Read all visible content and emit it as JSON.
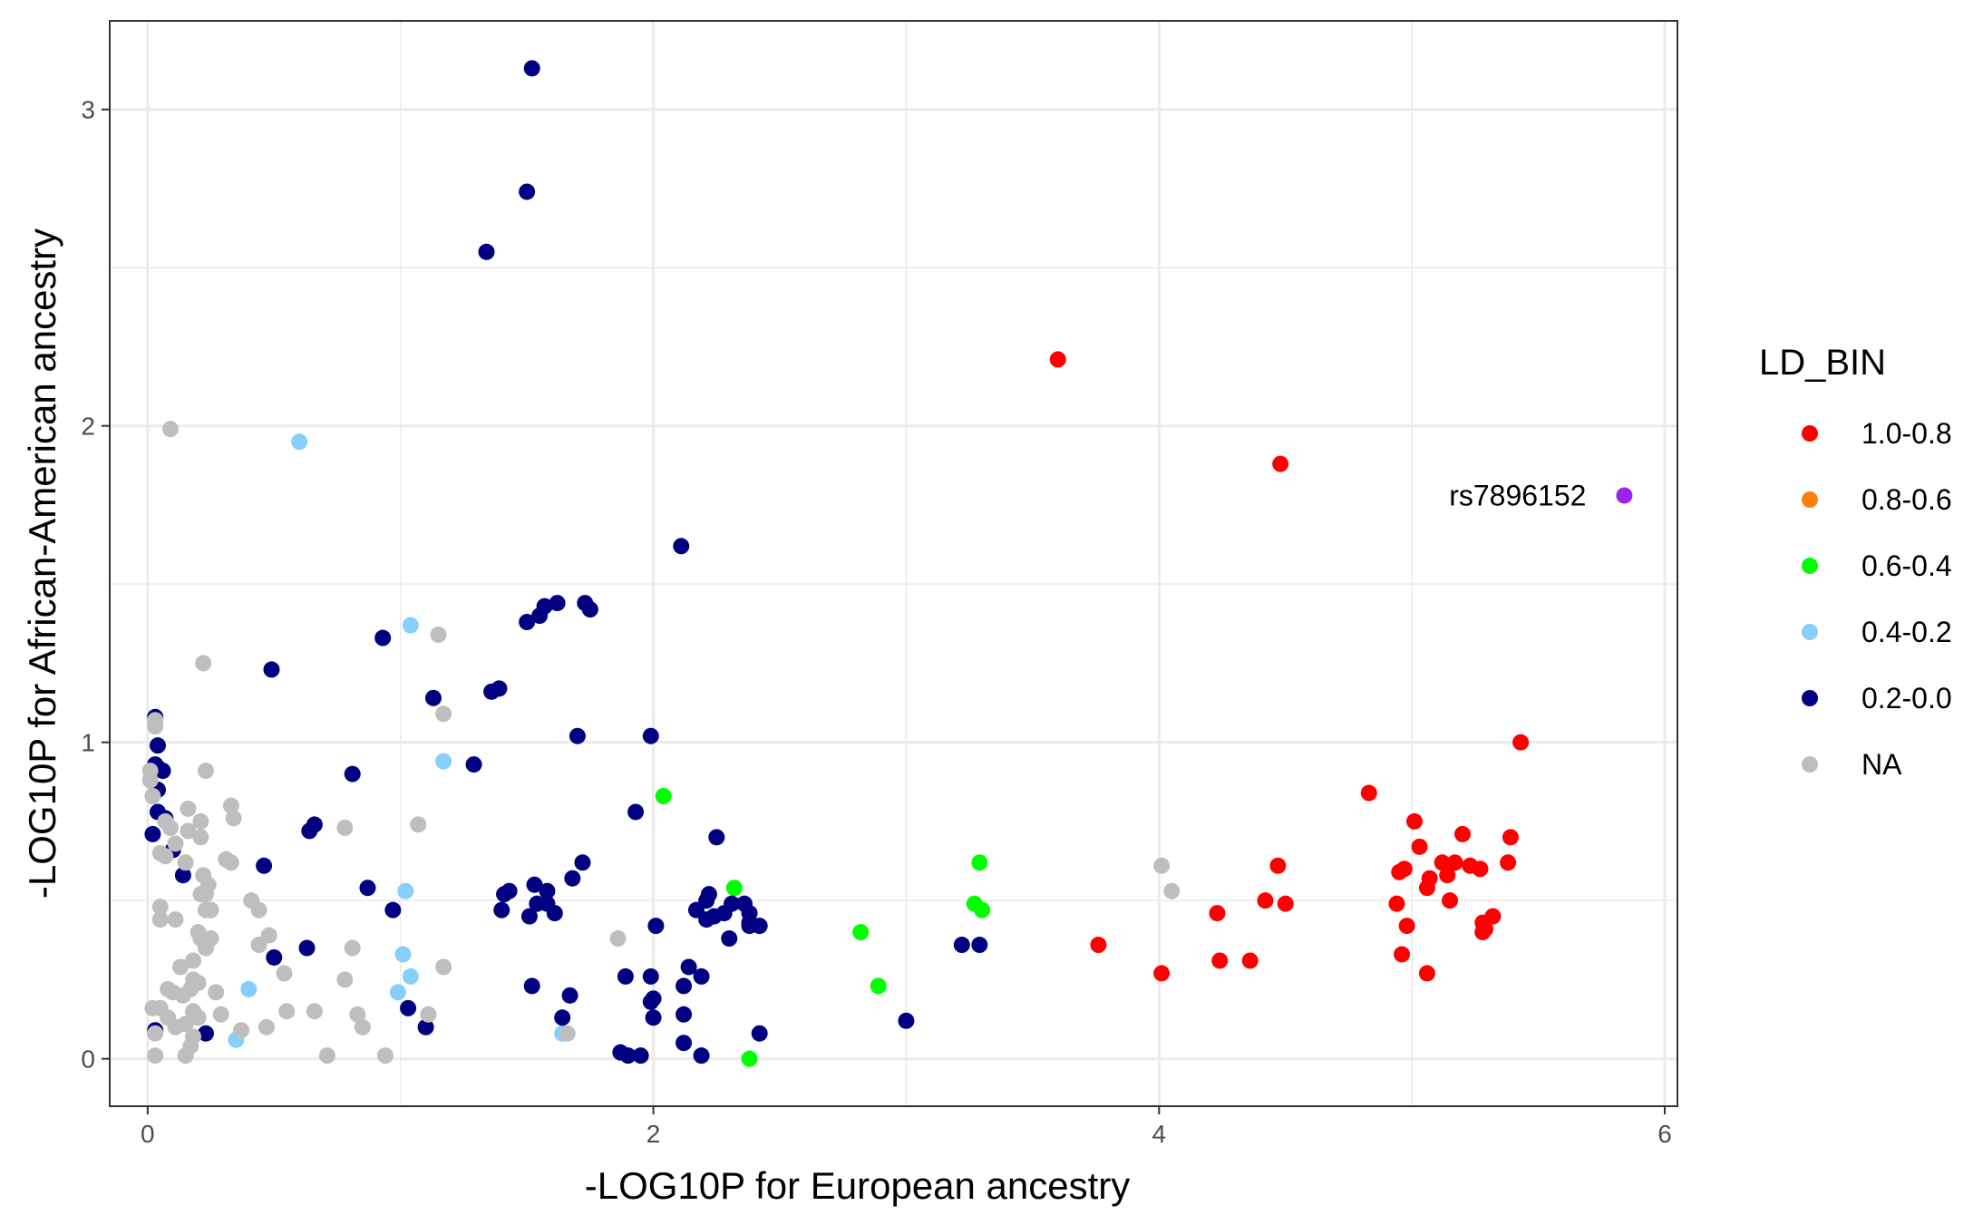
{
  "chart_data": {
    "type": "scatter",
    "xlabel": "-LOG10P for European ancestry",
    "ylabel": "-LOG10P for African-American ancestry",
    "xlim": [
      -0.15,
      6.05
    ],
    "ylim": [
      -0.15,
      3.28
    ],
    "xticks": [
      0,
      2,
      4,
      6
    ],
    "yticks": [
      0,
      1,
      2,
      3
    ],
    "grid": true,
    "legend_placement": "right",
    "legend": {
      "title": "LD_BIN",
      "entries": [
        {
          "label": "1.0-0.8",
          "color": "#ff0000"
        },
        {
          "label": "0.8-0.6",
          "color": "#ff7f0e"
        },
        {
          "label": "0.6-0.4",
          "color": "#00ff00"
        },
        {
          "label": "0.4-0.2",
          "color": "#87cefa"
        },
        {
          "label": "0.2-0.0",
          "color": "#000080"
        },
        {
          "label": "NA",
          "color": "#bebebe"
        }
      ]
    },
    "annotations": [
      {
        "text": "rs7896152",
        "x": 5.84,
        "y": 1.78
      }
    ],
    "series": [
      {
        "name": "1.0-0.8",
        "color": "#ff0000",
        "points": [
          [
            3.6,
            2.21
          ],
          [
            4.48,
            1.88
          ],
          [
            5.43,
            1.0
          ],
          [
            4.83,
            0.84
          ],
          [
            5.01,
            0.75
          ],
          [
            5.2,
            0.71
          ],
          [
            5.39,
            0.7
          ],
          [
            5.03,
            0.67
          ],
          [
            5.12,
            0.62
          ],
          [
            5.17,
            0.62
          ],
          [
            5.23,
            0.61
          ],
          [
            5.27,
            0.6
          ],
          [
            5.38,
            0.62
          ],
          [
            4.97,
            0.6
          ],
          [
            4.95,
            0.59
          ],
          [
            5.14,
            0.58
          ],
          [
            5.07,
            0.57
          ],
          [
            5.06,
            0.54
          ],
          [
            5.15,
            0.5
          ],
          [
            4.94,
            0.49
          ],
          [
            5.32,
            0.45
          ],
          [
            5.28,
            0.43
          ],
          [
            5.29,
            0.41
          ],
          [
            5.28,
            0.4
          ],
          [
            4.98,
            0.42
          ],
          [
            4.96,
            0.33
          ],
          [
            5.06,
            0.27
          ],
          [
            4.47,
            0.61
          ],
          [
            4.42,
            0.5
          ],
          [
            4.5,
            0.49
          ],
          [
            4.23,
            0.46
          ],
          [
            3.76,
            0.36
          ],
          [
            4.01,
            0.27
          ],
          [
            4.24,
            0.31
          ],
          [
            4.36,
            0.31
          ]
        ]
      },
      {
        "name": "0.6-0.4",
        "color": "#00ff00",
        "points": [
          [
            2.04,
            0.83
          ],
          [
            2.32,
            0.54
          ],
          [
            3.29,
            0.62
          ],
          [
            3.27,
            0.49
          ],
          [
            3.3,
            0.47
          ],
          [
            2.82,
            0.4
          ],
          [
            2.89,
            0.23
          ],
          [
            2.38,
            0.0
          ]
        ]
      },
      {
        "name": "0.4-0.2",
        "color": "#87cefa",
        "points": [
          [
            0.6,
            1.95
          ],
          [
            1.04,
            1.37
          ],
          [
            1.17,
            0.94
          ],
          [
            1.02,
            0.53
          ],
          [
            1.01,
            0.33
          ],
          [
            1.04,
            0.26
          ],
          [
            0.99,
            0.21
          ],
          [
            0.4,
            0.22
          ],
          [
            0.35,
            0.06
          ],
          [
            1.64,
            0.08
          ]
        ]
      },
      {
        "name": "0.2-0.0",
        "color": "#000080",
        "points": [
          [
            1.52,
            3.13
          ],
          [
            1.5,
            2.74
          ],
          [
            1.34,
            2.55
          ],
          [
            2.11,
            1.62
          ],
          [
            1.5,
            1.38
          ],
          [
            1.55,
            1.4
          ],
          [
            1.57,
            1.43
          ],
          [
            1.62,
            1.44
          ],
          [
            1.73,
            1.44
          ],
          [
            1.75,
            1.42
          ],
          [
            0.93,
            1.33
          ],
          [
            0.49,
            1.23
          ],
          [
            1.39,
            1.17
          ],
          [
            1.36,
            1.16
          ],
          [
            1.13,
            1.14
          ],
          [
            1.7,
            1.02
          ],
          [
            1.99,
            1.02
          ],
          [
            0.03,
            1.08
          ],
          [
            0.04,
            0.99
          ],
          [
            0.03,
            0.93
          ],
          [
            0.04,
            0.92
          ],
          [
            0.06,
            0.91
          ],
          [
            0.04,
            0.85
          ],
          [
            0.81,
            0.9
          ],
          [
            1.29,
            0.93
          ],
          [
            0.04,
            0.78
          ],
          [
            0.07,
            0.76
          ],
          [
            0.02,
            0.71
          ],
          [
            0.64,
            0.72
          ],
          [
            0.66,
            0.74
          ],
          [
            1.93,
            0.78
          ],
          [
            2.25,
            0.7
          ],
          [
            0.46,
            0.61
          ],
          [
            0.14,
            0.58
          ],
          [
            1.72,
            0.62
          ],
          [
            1.68,
            0.57
          ],
          [
            0.87,
            0.54
          ],
          [
            1.53,
            0.55
          ],
          [
            1.58,
            0.53
          ],
          [
            1.43,
            0.53
          ],
          [
            1.41,
            0.52
          ],
          [
            1.54,
            0.49
          ],
          [
            1.58,
            0.49
          ],
          [
            1.4,
            0.47
          ],
          [
            0.97,
            0.47
          ],
          [
            1.51,
            0.45
          ],
          [
            1.61,
            0.46
          ],
          [
            2.17,
            0.47
          ],
          [
            2.21,
            0.5
          ],
          [
            2.22,
            0.52
          ],
          [
            2.28,
            0.46
          ],
          [
            2.24,
            0.45
          ],
          [
            2.21,
            0.44
          ],
          [
            2.36,
            0.49
          ],
          [
            2.31,
            0.49
          ],
          [
            2.38,
            0.46
          ],
          [
            2.38,
            0.43
          ],
          [
            2.42,
            0.42
          ],
          [
            2.38,
            0.42
          ],
          [
            2.3,
            0.38
          ],
          [
            2.01,
            0.42
          ],
          [
            0.63,
            0.35
          ],
          [
            0.5,
            0.32
          ],
          [
            3.22,
            0.36
          ],
          [
            3.29,
            0.36
          ],
          [
            1.52,
            0.23
          ],
          [
            1.67,
            0.2
          ],
          [
            1.89,
            0.26
          ],
          [
            1.99,
            0.26
          ],
          [
            2.14,
            0.29
          ],
          [
            2.19,
            0.26
          ],
          [
            2.12,
            0.23
          ],
          [
            2.0,
            0.19
          ],
          [
            1.99,
            0.18
          ],
          [
            2.0,
            0.13
          ],
          [
            1.64,
            0.13
          ],
          [
            1.03,
            0.16
          ],
          [
            1.1,
            0.1
          ],
          [
            2.12,
            0.14
          ],
          [
            2.42,
            0.08
          ],
          [
            3.0,
            0.12
          ],
          [
            2.12,
            0.05
          ],
          [
            2.19,
            0.01
          ],
          [
            1.87,
            0.02
          ],
          [
            1.9,
            0.01
          ],
          [
            1.95,
            0.01
          ],
          [
            0.23,
            0.08
          ],
          [
            0.03,
            0.09
          ],
          [
            0.1,
            0.66
          ]
        ]
      },
      {
        "name": "NA",
        "color": "#bebebe",
        "points": [
          [
            0.09,
            1.99
          ],
          [
            1.15,
            1.34
          ],
          [
            0.22,
            1.25
          ],
          [
            1.17,
            1.09
          ],
          [
            0.03,
            1.07
          ],
          [
            0.03,
            1.05
          ],
          [
            0.01,
            0.91
          ],
          [
            0.23,
            0.91
          ],
          [
            0.01,
            0.88
          ],
          [
            0.02,
            0.83
          ],
          [
            0.16,
            0.79
          ],
          [
            0.33,
            0.8
          ],
          [
            0.34,
            0.76
          ],
          [
            0.21,
            0.75
          ],
          [
            0.07,
            0.75
          ],
          [
            0.09,
            0.73
          ],
          [
            0.16,
            0.72
          ],
          [
            0.21,
            0.7
          ],
          [
            0.11,
            0.68
          ],
          [
            0.78,
            0.73
          ],
          [
            1.07,
            0.74
          ],
          [
            0.05,
            0.65
          ],
          [
            0.07,
            0.64
          ],
          [
            0.15,
            0.62
          ],
          [
            0.31,
            0.63
          ],
          [
            0.33,
            0.62
          ],
          [
            0.22,
            0.58
          ],
          [
            0.24,
            0.55
          ],
          [
            0.21,
            0.52
          ],
          [
            0.23,
            0.52
          ],
          [
            0.41,
            0.5
          ],
          [
            0.44,
            0.47
          ],
          [
            0.23,
            0.47
          ],
          [
            0.25,
            0.47
          ],
          [
            0.05,
            0.48
          ],
          [
            0.05,
            0.44
          ],
          [
            0.11,
            0.44
          ],
          [
            0.2,
            0.4
          ],
          [
            0.21,
            0.38
          ],
          [
            0.25,
            0.38
          ],
          [
            0.48,
            0.39
          ],
          [
            0.23,
            0.35
          ],
          [
            0.44,
            0.36
          ],
          [
            0.18,
            0.31
          ],
          [
            0.13,
            0.29
          ],
          [
            0.18,
            0.25
          ],
          [
            0.54,
            0.27
          ],
          [
            0.78,
            0.25
          ],
          [
            0.81,
            0.35
          ],
          [
            1.17,
            0.29
          ],
          [
            1.86,
            0.38
          ],
          [
            4.01,
            0.61
          ],
          [
            4.05,
            0.53
          ],
          [
            0.08,
            0.22
          ],
          [
            0.1,
            0.21
          ],
          [
            0.14,
            0.2
          ],
          [
            0.17,
            0.22
          ],
          [
            0.2,
            0.24
          ],
          [
            0.27,
            0.21
          ],
          [
            0.02,
            0.16
          ],
          [
            0.05,
            0.16
          ],
          [
            0.08,
            0.13
          ],
          [
            0.11,
            0.1
          ],
          [
            0.15,
            0.11
          ],
          [
            0.18,
            0.15
          ],
          [
            0.2,
            0.13
          ],
          [
            0.29,
            0.14
          ],
          [
            0.55,
            0.15
          ],
          [
            0.66,
            0.15
          ],
          [
            0.83,
            0.14
          ],
          [
            0.85,
            0.1
          ],
          [
            1.11,
            0.14
          ],
          [
            0.47,
            0.1
          ],
          [
            0.37,
            0.09
          ],
          [
            0.03,
            0.08
          ],
          [
            0.18,
            0.07
          ],
          [
            0.17,
            0.04
          ],
          [
            0.15,
            0.01
          ],
          [
            0.03,
            0.01
          ],
          [
            0.71,
            0.01
          ],
          [
            0.94,
            0.01
          ],
          [
            1.66,
            0.08
          ]
        ]
      },
      {
        "name": "",
        "color": "#a020f0",
        "points": [
          [
            5.84,
            1.78
          ]
        ]
      }
    ]
  }
}
